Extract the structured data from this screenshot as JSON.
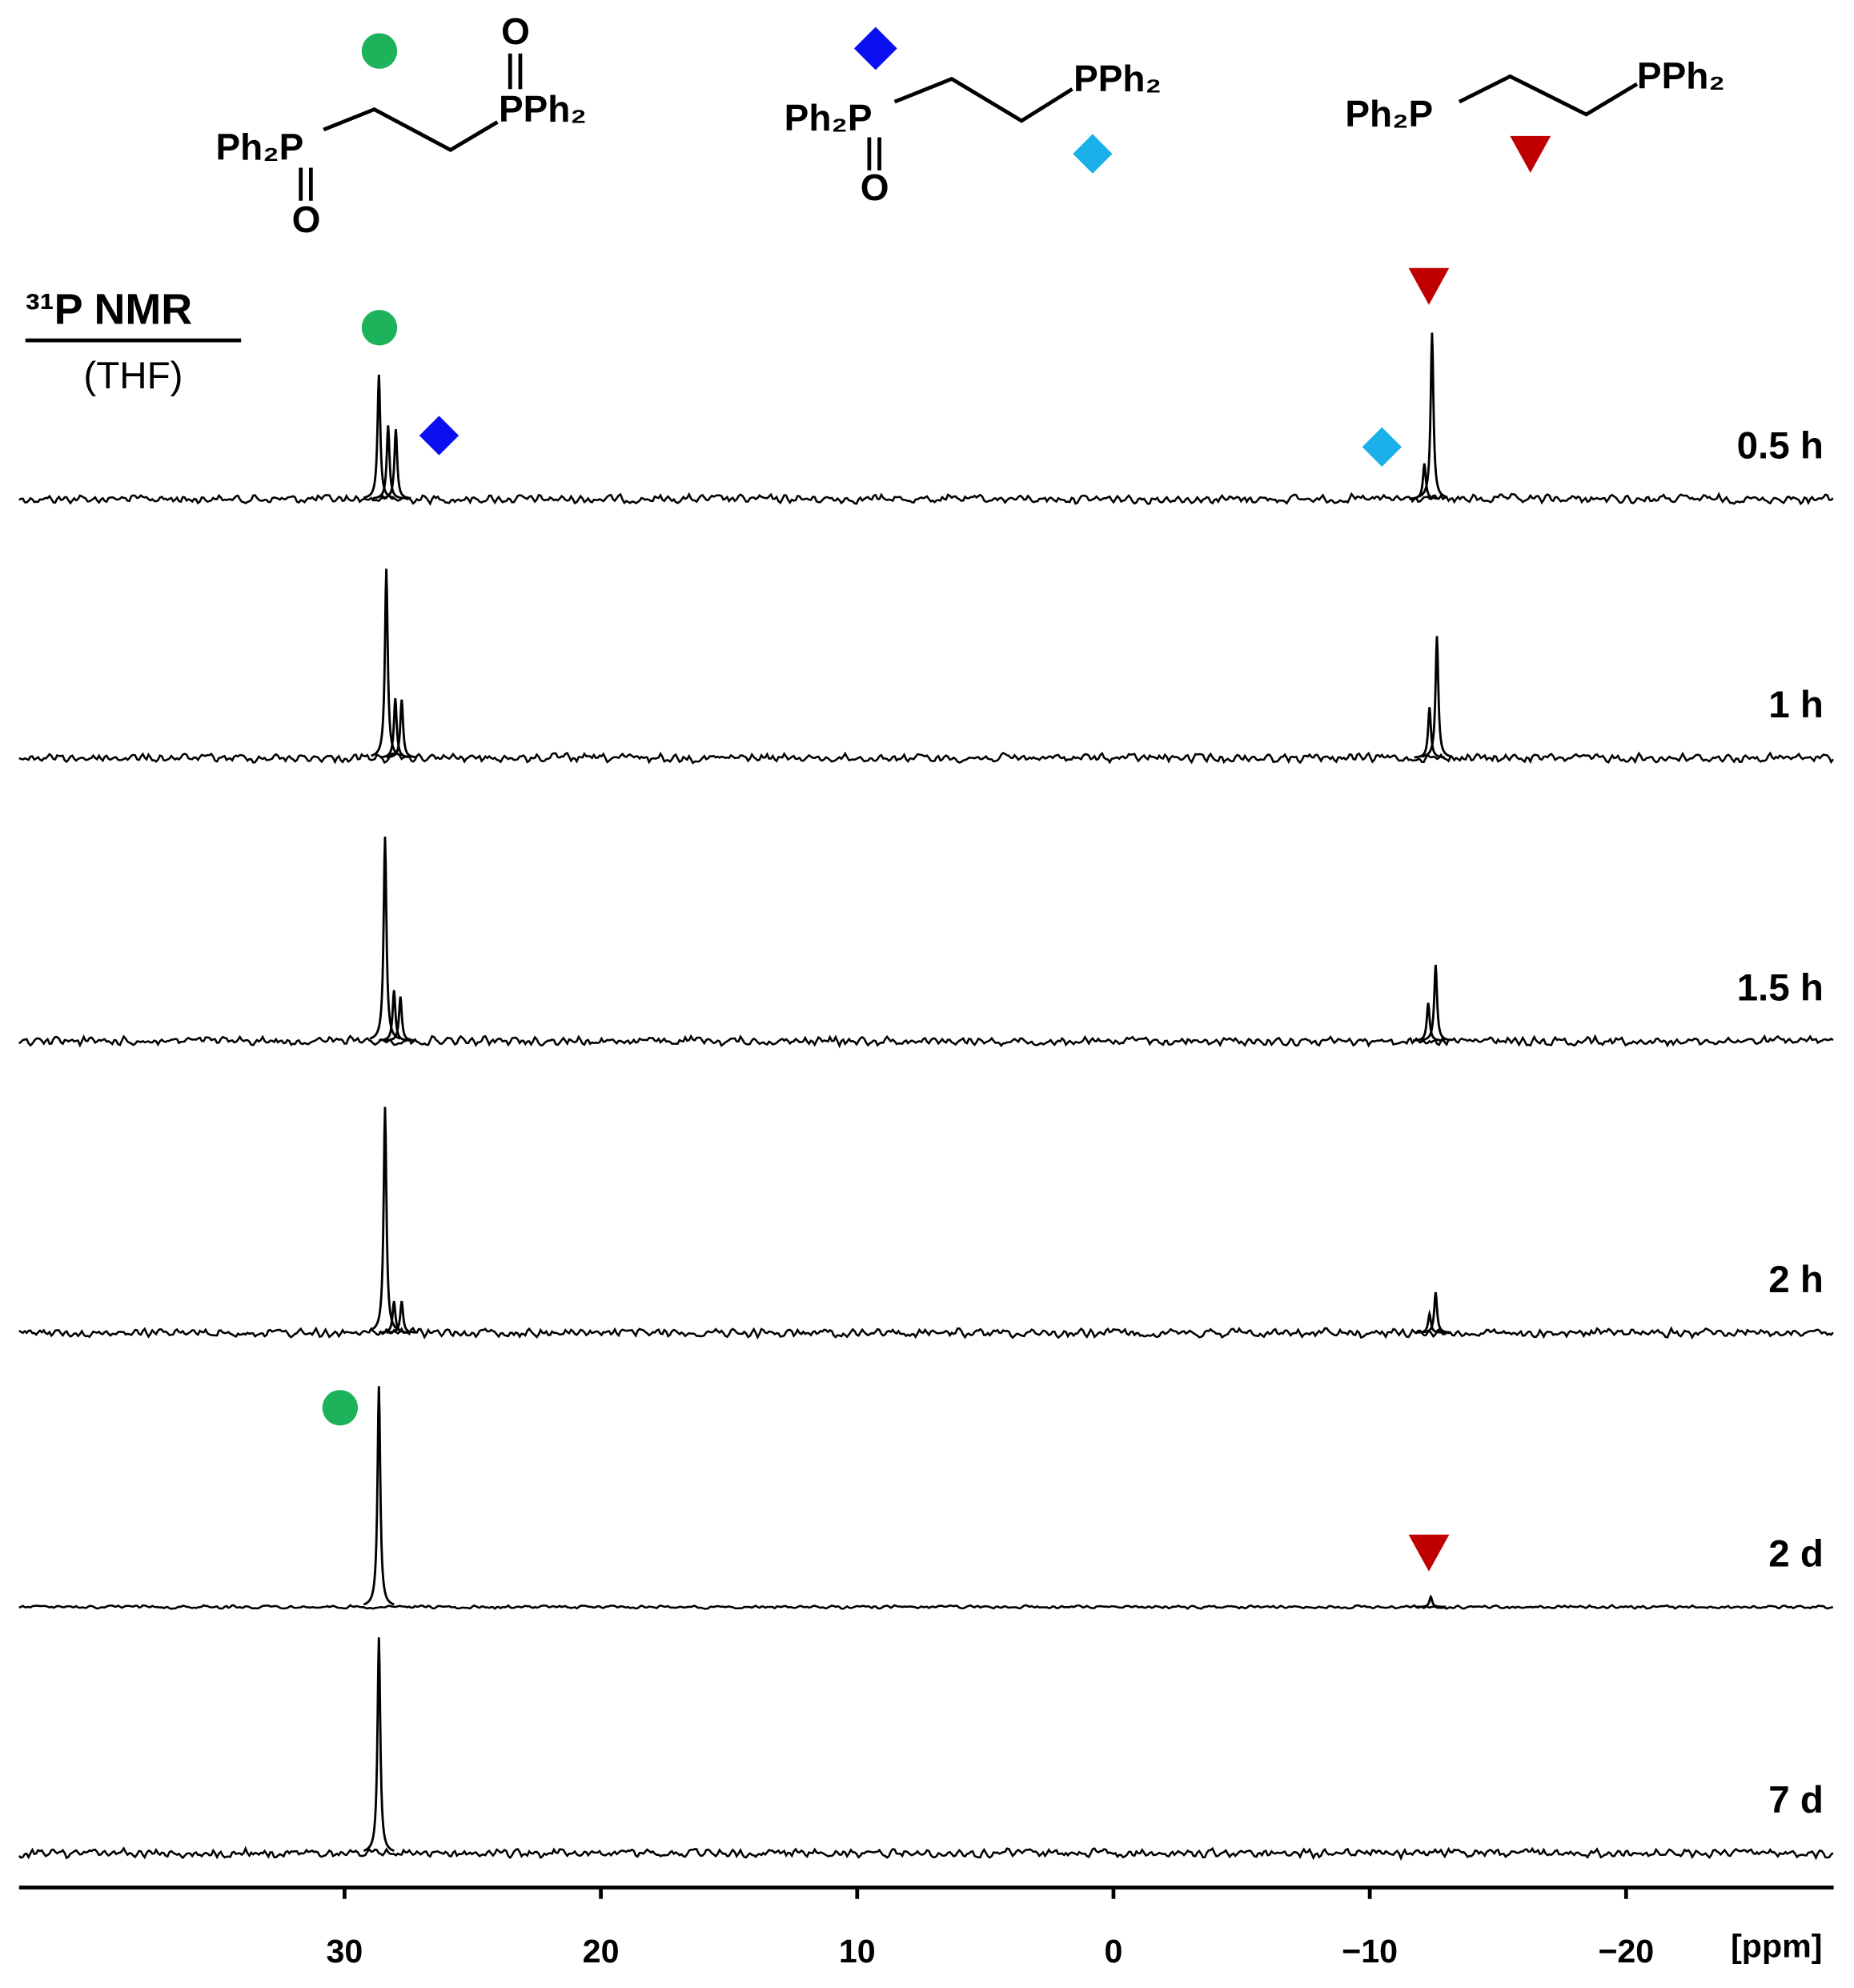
{
  "chart_data": {
    "type": "spectrum",
    "title": "³¹P NMR",
    "subtitle": "(THF)",
    "x_label": "[ppm]",
    "xlim": [
      42.7,
      -28.1
    ],
    "xticks": [
      30,
      20,
      10,
      0,
      {
        "value": -10,
        "label": "−10"
      },
      {
        "value": -20,
        "label": "−20"
      }
    ],
    "structure_labels": [
      [
        "Ph₂P",
        "O",
        "PPh₂",
        "O"
      ],
      [
        "Ph₂P",
        "O",
        "PPh₂"
      ],
      [
        "Ph₂P",
        "PPh₂"
      ]
    ],
    "series": [
      {
        "name": "0.5 h",
        "color": "#000000",
        "peaks_ppm": [
          28.66,
          28.3,
          28.0,
          -12.13,
          -12.43
        ],
        "heights": [
          98,
          58,
          55,
          28,
          131
        ]
      },
      {
        "name": "1 h",
        "color": "#000000",
        "peaks_ppm": [
          28.37,
          28.02,
          27.77,
          -12.33,
          -12.62
        ],
        "heights": [
          149,
          47,
          46,
          40,
          96
        ]
      },
      {
        "name": "1.5 h",
        "color": "#000000",
        "peaks_ppm": [
          28.42,
          28.07,
          27.82,
          -12.28,
          -12.57
        ],
        "heights": [
          161,
          40,
          35,
          30,
          60
        ]
      },
      {
        "name": "2 h",
        "color": "#000000",
        "peaks_ppm": [
          28.42,
          28.07,
          27.77,
          -12.33,
          -12.57
        ],
        "heights": [
          178,
          25,
          25,
          15,
          32
        ]
      },
      {
        "name": "2 d",
        "color": "#000000",
        "peaks_ppm": [
          28.66,
          -12.38
        ],
        "heights": [
          174,
          8
        ]
      },
      {
        "name": "7 d",
        "color": "#000000",
        "peaks_ppm": [
          28.66
        ],
        "heights": [
          170
        ]
      }
    ]
  }
}
